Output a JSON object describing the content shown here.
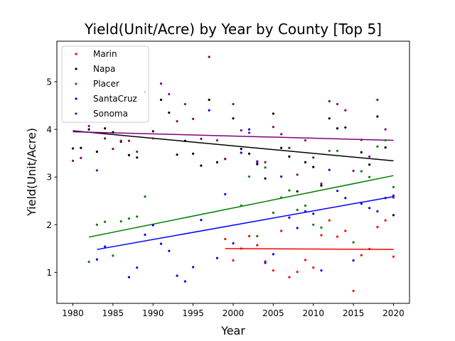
{
  "chart_data": {
    "type": "scatter",
    "title": "Yield(Unit/Acre) by Year by County [Top 5]",
    "xlabel": "Year",
    "ylabel": "Yield(Unit/Acre)",
    "xlim": [
      1978,
      2022
    ],
    "ylim": [
      0.35,
      5.85
    ],
    "xticks": [
      1980,
      1985,
      1990,
      1995,
      2000,
      2005,
      2010,
      2015,
      2020
    ],
    "yticks": [
      1,
      2,
      3,
      4,
      5
    ],
    "grid": false,
    "legend_position": "upper-left",
    "series": [
      {
        "name": "Marin",
        "color": "#ff0000",
        "points": [
          [
            1999,
            1.7
          ],
          [
            2000,
            1.25
          ],
          [
            2001,
            1.5
          ],
          [
            2002,
            1.76
          ],
          [
            2003,
            1.57
          ],
          [
            2004,
            1.23
          ],
          [
            2005,
            1.04
          ],
          [
            2006,
            1.87
          ],
          [
            2007,
            0.9
          ],
          [
            2008,
            1.01
          ],
          [
            2009,
            1.26
          ],
          [
            2010,
            1.1
          ],
          [
            2011,
            1.78
          ],
          [
            2012,
            2.09
          ],
          [
            2013,
            1.75
          ],
          [
            2014,
            1.87
          ],
          [
            2015,
            0.61
          ],
          [
            2016,
            1.36
          ],
          [
            2017,
            1.49
          ],
          [
            2018,
            1.95
          ],
          [
            2019,
            2.09
          ],
          [
            2020,
            1.33
          ]
        ],
        "trend": [
          [
            1999,
            1.5
          ],
          [
            2020,
            1.48
          ]
        ]
      },
      {
        "name": "Napa",
        "color": "#000000",
        "points": [
          [
            1980,
            3.6
          ],
          [
            1981,
            3.61
          ],
          [
            1982,
            4.0
          ],
          [
            1983,
            3.53
          ],
          [
            1984,
            4.02
          ],
          [
            1985,
            3.94
          ],
          [
            1986,
            3.74
          ],
          [
            1987,
            3.46
          ],
          [
            1988,
            3.41
          ],
          [
            1990,
            3.96
          ],
          [
            1991,
            4.62
          ],
          [
            1992,
            4.35
          ],
          [
            1993,
            3.47
          ],
          [
            1994,
            3.76
          ],
          [
            1995,
            3.49
          ],
          [
            1996,
            3.24
          ],
          [
            1997,
            4.62
          ],
          [
            1998,
            3.31
          ],
          [
            1999,
            3.38
          ],
          [
            2000,
            4.23
          ],
          [
            2001,
            3.59
          ],
          [
            2002,
            3.49
          ],
          [
            2003,
            3.27
          ],
          [
            2004,
            2.97
          ],
          [
            2005,
            4.33
          ],
          [
            2006,
            3.61
          ],
          [
            2007,
            3.43
          ],
          [
            2008,
            2.7
          ],
          [
            2009,
            3.31
          ],
          [
            2010,
            3.21
          ],
          [
            2011,
            2.82
          ],
          [
            2012,
            4.23
          ],
          [
            2013,
            4.02
          ],
          [
            2014,
            4.04
          ],
          [
            2016,
            3.52
          ],
          [
            2017,
            3.26
          ],
          [
            2018,
            4.27
          ],
          [
            2019,
            3.62
          ],
          [
            2020,
            2.2
          ]
        ],
        "trend": [
          [
            1980,
            3.97
          ],
          [
            2020,
            3.34
          ]
        ]
      },
      {
        "name": "Placer",
        "color": "#008000",
        "points": [
          [
            1982,
            1.22
          ],
          [
            1983,
            2.0
          ],
          [
            1984,
            2.06
          ],
          [
            1985,
            1.35
          ],
          [
            1986,
            2.07
          ],
          [
            1987,
            2.13
          ],
          [
            1988,
            2.17
          ],
          [
            1989,
            2.59
          ],
          [
            2001,
            2.4
          ],
          [
            2002,
            3.01
          ],
          [
            2003,
            1.76
          ],
          [
            2004,
            3.2
          ],
          [
            2005,
            2.25
          ],
          [
            2006,
            2.57
          ],
          [
            2007,
            2.72
          ],
          [
            2008,
            2.31
          ],
          [
            2009,
            2.4
          ],
          [
            2010,
            2.0
          ],
          [
            2011,
            1.94
          ],
          [
            2012,
            3.55
          ],
          [
            2013,
            3.55
          ],
          [
            2015,
            1.63
          ],
          [
            2016,
            3.12
          ],
          [
            2017,
            3.0
          ],
          [
            2018,
            3.64
          ],
          [
            2019,
            3.77
          ],
          [
            2020,
            2.79
          ]
        ],
        "trend": [
          [
            1982,
            1.74
          ],
          [
            2020,
            3.03
          ]
        ]
      },
      {
        "name": "SantaCruz",
        "color": "#0000ff",
        "points": [
          [
            1983,
            1.27
          ],
          [
            1984,
            1.54
          ],
          [
            1987,
            0.9
          ],
          [
            1988,
            1.1
          ],
          [
            1989,
            1.79
          ],
          [
            1990,
            1.99
          ],
          [
            1991,
            1.6
          ],
          [
            1992,
            1.45
          ],
          [
            1993,
            0.93
          ],
          [
            1994,
            0.81
          ],
          [
            1995,
            1.11
          ],
          [
            1996,
            2.1
          ],
          [
            1997,
            4.4
          ],
          [
            1998,
            1.3
          ],
          [
            1999,
            2.64
          ],
          [
            2000,
            1.61
          ],
          [
            2001,
            3.51
          ],
          [
            2002,
            4.0
          ],
          [
            2003,
            3.31
          ],
          [
            2004,
            1.2
          ],
          [
            2005,
            1.38
          ],
          [
            2006,
            3.01
          ],
          [
            2007,
            2.15
          ],
          [
            2008,
            1.93
          ],
          [
            2009,
            2.28
          ],
          [
            2010,
            2.23
          ],
          [
            2011,
            1.04
          ],
          [
            2012,
            3.15
          ],
          [
            2013,
            2.71
          ],
          [
            2014,
            2.56
          ],
          [
            2015,
            1.25
          ],
          [
            2016,
            2.44
          ],
          [
            2017,
            2.35
          ],
          [
            2018,
            2.28
          ],
          [
            2019,
            2.56
          ],
          [
            2020,
            2.61
          ]
        ],
        "trend": [
          [
            1983,
            1.48
          ],
          [
            2020,
            2.59
          ]
        ]
      },
      {
        "name": "Sonoma",
        "color": "#800080",
        "points": [
          [
            1980,
            3.34
          ],
          [
            1981,
            3.4
          ],
          [
            1982,
            4.07
          ],
          [
            1983,
            3.14
          ],
          [
            1984,
            3.81
          ],
          [
            1985,
            3.59
          ],
          [
            1986,
            3.76
          ],
          [
            1987,
            3.76
          ],
          [
            1988,
            3.53
          ],
          [
            1989,
            4.78
          ],
          [
            1990,
            3.81
          ],
          [
            1991,
            4.96
          ],
          [
            1992,
            4.74
          ],
          [
            1993,
            4.17
          ],
          [
            1994,
            4.53
          ],
          [
            1995,
            4.22
          ],
          [
            1996,
            3.8
          ],
          [
            1997,
            5.52
          ],
          [
            1998,
            3.77
          ],
          [
            1999,
            3.38
          ],
          [
            2000,
            4.53
          ],
          [
            2001,
            3.98
          ],
          [
            2002,
            3.93
          ],
          [
            2003,
            3.33
          ],
          [
            2004,
            3.31
          ],
          [
            2005,
            4.05
          ],
          [
            2006,
            3.9
          ],
          [
            2007,
            3.61
          ],
          [
            2008,
            3.05
          ],
          [
            2009,
            3.77
          ],
          [
            2010,
            3.41
          ],
          [
            2011,
            2.86
          ],
          [
            2012,
            4.59
          ],
          [
            2013,
            4.53
          ],
          [
            2014,
            4.4
          ],
          [
            2015,
            3.13
          ],
          [
            2016,
            3.78
          ],
          [
            2017,
            3.43
          ],
          [
            2018,
            4.62
          ],
          [
            2019,
            4.0
          ],
          [
            2020,
            2.57
          ]
        ],
        "trend": [
          [
            1980,
            3.95
          ],
          [
            2020,
            3.77
          ]
        ]
      }
    ]
  }
}
